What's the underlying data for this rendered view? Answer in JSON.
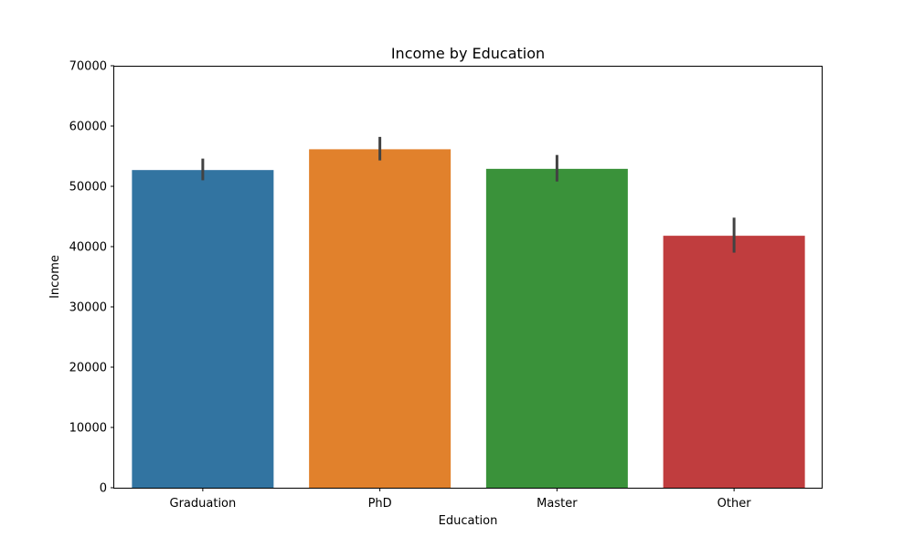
{
  "chart_data": {
    "type": "bar",
    "title": "Income by Education",
    "xlabel": "Education",
    "ylabel": "Income",
    "ylim": [
      0,
      70000
    ],
    "yticks": [
      0,
      10000,
      20000,
      30000,
      40000,
      50000,
      60000,
      70000
    ],
    "categories": [
      "Graduation",
      "PhD",
      "Master",
      "Other"
    ],
    "values": [
      52700,
      56150,
      52900,
      41800
    ],
    "error_low": [
      51000,
      54300,
      50800,
      39000
    ],
    "error_high": [
      54600,
      58200,
      55200,
      44800
    ],
    "colors": [
      "#3274a1",
      "#e1812c",
      "#3a923a",
      "#c03d3e"
    ],
    "grid": false,
    "legend": "none"
  }
}
